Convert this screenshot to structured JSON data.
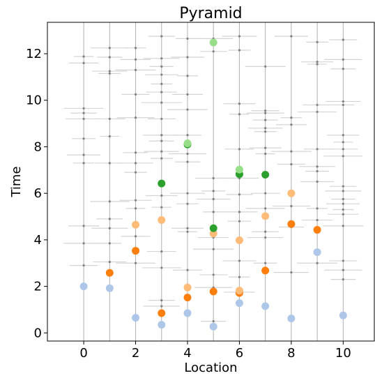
{
  "chart_data": {
    "type": "scatter",
    "title": "Pyramid",
    "xlabel": "Location",
    "ylabel": "Time",
    "xlim": [
      -1.4,
      11.2
    ],
    "ylim": [
      -0.35,
      13.35
    ],
    "xticks": [
      0,
      2,
      4,
      6,
      8,
      10
    ],
    "yticks": [
      0,
      2,
      4,
      6,
      8,
      10,
      12
    ],
    "grid": false,
    "colors": {
      "light_blue": "#aec7e8",
      "dark_orange": "#ff7f0e",
      "light_orange": "#ffbb78",
      "dark_green": "#2ca02c",
      "light_green": "#98df8a",
      "vline": "#b0b0b0",
      "hline": "#d4d4d4",
      "small_point": "#808080"
    },
    "vertical_lines_x": [
      0,
      1,
      2,
      3,
      4,
      5,
      6,
      7,
      8,
      9,
      10
    ],
    "series": [
      {
        "color": "#aec7e8",
        "points": [
          [
            0,
            2.0
          ],
          [
            1,
            1.92
          ],
          [
            2,
            0.65
          ],
          [
            3,
            0.35
          ],
          [
            4,
            0.85
          ],
          [
            5,
            0.27
          ],
          [
            6,
            1.28
          ],
          [
            7,
            1.15
          ],
          [
            8,
            0.62
          ],
          [
            9,
            3.47
          ],
          [
            10,
            0.75
          ]
        ]
      },
      {
        "color": "#ff7f0e",
        "points": [
          [
            1,
            2.58
          ],
          [
            2,
            3.53
          ],
          [
            3,
            0.85
          ],
          [
            4,
            1.52
          ],
          [
            5,
            1.78
          ],
          [
            6,
            1.72
          ],
          [
            7,
            2.68
          ],
          [
            8,
            4.68
          ],
          [
            9,
            4.43
          ]
        ]
      },
      {
        "color": "#ffbb78",
        "points": [
          [
            2,
            4.65
          ],
          [
            3,
            4.85
          ],
          [
            4,
            1.95
          ],
          [
            5,
            4.27
          ],
          [
            6,
            3.98
          ],
          [
            7,
            5.02
          ],
          [
            8,
            6.0
          ],
          [
            6,
            1.82
          ]
        ]
      },
      {
        "color": "#2ca02c",
        "points": [
          [
            3,
            6.42
          ],
          [
            4,
            8.1
          ],
          [
            5,
            4.5
          ],
          [
            6,
            6.82
          ],
          [
            7,
            6.8
          ]
        ]
      },
      {
        "color": "#98df8a",
        "points": [
          [
            4,
            8.15
          ],
          [
            5,
            12.48
          ],
          [
            6,
            7.02
          ]
        ]
      }
    ],
    "background_points": [
      [
        0,
        11.88
      ],
      [
        0,
        11.6
      ],
      [
        0,
        9.65
      ],
      [
        0,
        9.45
      ],
      [
        0,
        9.2
      ],
      [
        0,
        8.35
      ],
      [
        0,
        7.65
      ],
      [
        0,
        7.3
      ],
      [
        0,
        4.6
      ],
      [
        0,
        3.85
      ],
      [
        0,
        2.9
      ],
      [
        1,
        12.25
      ],
      [
        1,
        11.85
      ],
      [
        1,
        11.25
      ],
      [
        1,
        11.15
      ],
      [
        1,
        9.2
      ],
      [
        1,
        8.45
      ],
      [
        1,
        7.3
      ],
      [
        1,
        5.65
      ],
      [
        1,
        4.9
      ],
      [
        1,
        4.5
      ],
      [
        1,
        3.85
      ],
      [
        1,
        3.05
      ],
      [
        2,
        12.25
      ],
      [
        2,
        11.75
      ],
      [
        2,
        11.3
      ],
      [
        2,
        10.25
      ],
      [
        2,
        9.25
      ],
      [
        2,
        7.75
      ],
      [
        2,
        7.3
      ],
      [
        2,
        6.9
      ],
      [
        2,
        5.7
      ],
      [
        2,
        5.35
      ],
      [
        2,
        4.15
      ],
      [
        2,
        3.0
      ],
      [
        3,
        12.75
      ],
      [
        3,
        11.8
      ],
      [
        3,
        11.45
      ],
      [
        3,
        11.1
      ],
      [
        3,
        10.7
      ],
      [
        3,
        10.35
      ],
      [
        3,
        9.9
      ],
      [
        3,
        9.2
      ],
      [
        3,
        8.5
      ],
      [
        3,
        8.25
      ],
      [
        3,
        7.8
      ],
      [
        3,
        7.5
      ],
      [
        3,
        5.9
      ],
      [
        3,
        5.4
      ],
      [
        3,
        3.5
      ],
      [
        3,
        2.8
      ],
      [
        3,
        1.4
      ],
      [
        3,
        1.15
      ],
      [
        4,
        12.65
      ],
      [
        4,
        11.85
      ],
      [
        4,
        11.05
      ],
      [
        4,
        10.25
      ],
      [
        4,
        9.6
      ],
      [
        4,
        8.5
      ],
      [
        4,
        7.7
      ],
      [
        4,
        7.35
      ],
      [
        4,
        6.0
      ],
      [
        4,
        5.55
      ],
      [
        4,
        4.5
      ],
      [
        4,
        4.35
      ],
      [
        4,
        2.7
      ],
      [
        5,
        12.65
      ],
      [
        5,
        12.1
      ],
      [
        5,
        6.65
      ],
      [
        5,
        6.1
      ],
      [
        5,
        5.75
      ],
      [
        5,
        5.2
      ],
      [
        5,
        4.1
      ],
      [
        5,
        3.6
      ],
      [
        5,
        2.5
      ],
      [
        5,
        1.95
      ],
      [
        5,
        0.5
      ],
      [
        6,
        12.75
      ],
      [
        6,
        12.15
      ],
      [
        6,
        9.85
      ],
      [
        6,
        9.4
      ],
      [
        6,
        7.9
      ],
      [
        6,
        6.65
      ],
      [
        6,
        5.95
      ],
      [
        6,
        5.2
      ],
      [
        6,
        4.8
      ],
      [
        6,
        3.1
      ],
      [
        6,
        2.4
      ],
      [
        6,
        1.75
      ],
      [
        7,
        11.45
      ],
      [
        7,
        9.55
      ],
      [
        7,
        9.45
      ],
      [
        7,
        9.15
      ],
      [
        7,
        8.8
      ],
      [
        7,
        8.65
      ],
      [
        7,
        7.95
      ],
      [
        7,
        7.7
      ],
      [
        7,
        6.0
      ],
      [
        7,
        5.35
      ],
      [
        7,
        4.35
      ],
      [
        7,
        4.1
      ],
      [
        7,
        3.0
      ],
      [
        8,
        12.75
      ],
      [
        8,
        9.25
      ],
      [
        8,
        8.95
      ],
      [
        8,
        7.8
      ],
      [
        8,
        7.25
      ],
      [
        8,
        5.45
      ],
      [
        8,
        4.55
      ],
      [
        8,
        2.6
      ],
      [
        9,
        12.5
      ],
      [
        9,
        11.65
      ],
      [
        9,
        11.55
      ],
      [
        9,
        9.8
      ],
      [
        9,
        9.5
      ],
      [
        9,
        7.9
      ],
      [
        9,
        7.15
      ],
      [
        9,
        6.95
      ],
      [
        9,
        6.5
      ],
      [
        9,
        5.35
      ],
      [
        9,
        4.85
      ],
      [
        9,
        3.0
      ],
      [
        10,
        12.6
      ],
      [
        10,
        11.75
      ],
      [
        10,
        11.35
      ],
      [
        10,
        9.95
      ],
      [
        10,
        9.8
      ],
      [
        10,
        8.5
      ],
      [
        10,
        8.2
      ],
      [
        10,
        7.9
      ],
      [
        10,
        7.6
      ],
      [
        10,
        6.3
      ],
      [
        10,
        6.1
      ],
      [
        10,
        5.75
      ],
      [
        10,
        5.55
      ],
      [
        10,
        5.3
      ],
      [
        10,
        5.1
      ],
      [
        10,
        4.6
      ],
      [
        10,
        3.1
      ],
      [
        10,
        2.7
      ],
      [
        10,
        2.3
      ]
    ]
  }
}
